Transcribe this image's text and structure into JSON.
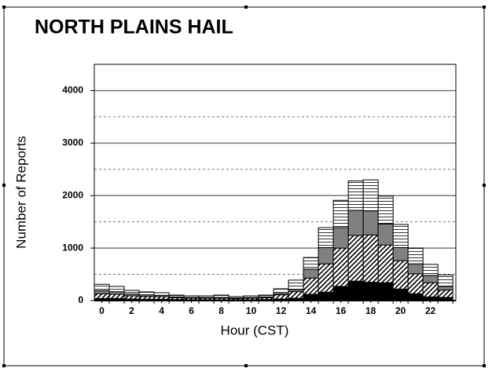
{
  "chart_data": {
    "type": "stacked_bar",
    "title": "NORTH PLAINS HAIL",
    "x_label": "Hour (CST)",
    "y_label": "Number of Reports",
    "x": [
      0,
      1,
      2,
      3,
      4,
      5,
      6,
      7,
      8,
      9,
      10,
      11,
      12,
      13,
      14,
      15,
      16,
      17,
      18,
      19,
      20,
      21,
      22,
      23
    ],
    "xlim": [
      -0.5,
      23.7
    ],
    "xticks": [
      0,
      2,
      4,
      6,
      8,
      10,
      12,
      14,
      16,
      18,
      20,
      22
    ],
    "ylim": [
      0,
      4500
    ],
    "yticks": [
      0,
      1000,
      2000,
      3000,
      4000
    ],
    "minor_yticks": [
      500,
      1500,
      2500,
      3500
    ],
    "grid": true,
    "series": [
      {
        "color": "#000000",
        "pattern": "solid",
        "values": [
          40,
          40,
          30,
          25,
          25,
          20,
          15,
          15,
          15,
          15,
          15,
          20,
          30,
          45,
          120,
          160,
          270,
          370,
          350,
          340,
          220,
          130,
          70,
          60
        ]
      },
      {
        "color": "#000000",
        "pattern": "diagonal",
        "values": [
          90,
          80,
          60,
          55,
          50,
          35,
          30,
          30,
          30,
          25,
          30,
          35,
          80,
          125,
          310,
          540,
          730,
          870,
          900,
          720,
          540,
          380,
          270,
          140
        ]
      },
      {
        "color": "#808080",
        "pattern": "solid",
        "values": [
          60,
          50,
          35,
          30,
          25,
          15,
          15,
          15,
          15,
          10,
          15,
          15,
          25,
          40,
          170,
          310,
          390,
          480,
          460,
          400,
          250,
          190,
          140,
          70
        ]
      },
      {
        "color": "#000000",
        "pattern": "horizontal",
        "values": [
          120,
          100,
          70,
          55,
          50,
          35,
          30,
          30,
          45,
          25,
          30,
          35,
          90,
          180,
          220,
          380,
          520,
          560,
          590,
          530,
          440,
          300,
          210,
          220
        ]
      }
    ]
  }
}
